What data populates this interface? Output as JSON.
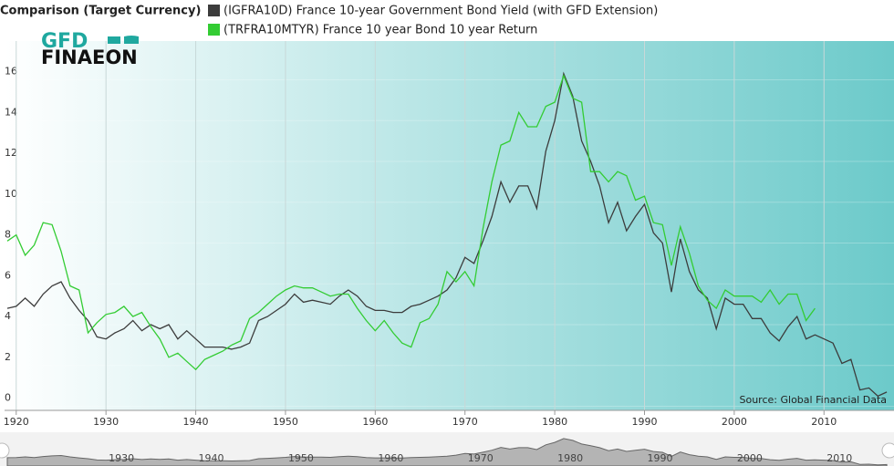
{
  "chart_data": {
    "type": "line",
    "title": "Comparison (Target Currency)",
    "logo": [
      "GFD",
      "FINAEON"
    ],
    "annotation": "Source: Global Financial Data",
    "x": [
      1919,
      1920,
      1921,
      1922,
      1923,
      1924,
      1925,
      1926,
      1927,
      1928,
      1929,
      1930,
      1931,
      1932,
      1933,
      1934,
      1935,
      1936,
      1937,
      1938,
      1939,
      1940,
      1941,
      1942,
      1943,
      1944,
      1945,
      1946,
      1947,
      1948,
      1949,
      1950,
      1951,
      1952,
      1953,
      1954,
      1955,
      1956,
      1957,
      1958,
      1959,
      1960,
      1961,
      1962,
      1963,
      1964,
      1965,
      1966,
      1967,
      1968,
      1969,
      1970,
      1971,
      1972,
      1973,
      1974,
      1975,
      1976,
      1977,
      1978,
      1979,
      1980,
      1981,
      1982,
      1983,
      1984,
      1985,
      1986,
      1987,
      1988,
      1989,
      1990,
      1991,
      1992,
      1993,
      1994,
      1995,
      1996,
      1997,
      1998,
      1999,
      2000,
      2001,
      2002,
      2003,
      2004,
      2005,
      2006,
      2007,
      2008,
      2009,
      2010,
      2011,
      2012,
      2013,
      2014,
      2015,
      2016,
      2017
    ],
    "series": [
      {
        "name": "(IGFRA10D) France 10-year Government Bond Yield (with GFD Extension)",
        "color": "#3c3c3c",
        "values": [
          4.8,
          4.9,
          5.3,
          4.9,
          5.5,
          5.9,
          6.1,
          5.3,
          4.7,
          4.2,
          3.4,
          3.3,
          3.6,
          3.8,
          4.2,
          3.7,
          4.0,
          3.8,
          4.0,
          3.3,
          3.7,
          3.3,
          2.9,
          2.9,
          2.9,
          2.8,
          2.9,
          3.1,
          4.2,
          4.4,
          4.7,
          5.0,
          5.5,
          5.1,
          5.2,
          5.1,
          5.0,
          5.4,
          5.7,
          5.4,
          4.9,
          4.7,
          4.7,
          4.6,
          4.6,
          4.9,
          5.0,
          5.2,
          5.4,
          5.7,
          6.3,
          7.3,
          7.0,
          8.1,
          9.3,
          11.0,
          10.0,
          10.8,
          10.8,
          9.7,
          12.5,
          14.0,
          16.3,
          15.2,
          13.0,
          12.0,
          10.8,
          9.0,
          10.0,
          8.6,
          9.3,
          9.9,
          8.5,
          8.0,
          5.6,
          8.2,
          6.6,
          5.7,
          5.3,
          3.8,
          5.3,
          5.0,
          5.0,
          4.3,
          4.3,
          3.6,
          3.2,
          3.9,
          4.4,
          3.3,
          3.5,
          3.3,
          3.1,
          2.1,
          2.3,
          0.8,
          0.9,
          0.5,
          0.7
        ]
      },
      {
        "name": "(TRFRA10MTYR) France 10 year Bond 10 year Return",
        "color": "#33cc33",
        "values": [
          8.1,
          8.4,
          7.4,
          7.9,
          9.0,
          8.9,
          7.6,
          5.9,
          5.7,
          3.6,
          4.1,
          4.5,
          4.6,
          4.9,
          4.4,
          4.6,
          3.9,
          3.3,
          2.4,
          2.6,
          2.2,
          1.8,
          2.3,
          2.5,
          2.7,
          3.0,
          3.2,
          4.3,
          4.6,
          5.0,
          5.4,
          5.7,
          5.9,
          5.8,
          5.8,
          5.6,
          5.4,
          5.5,
          5.5,
          4.8,
          4.2,
          3.7,
          4.2,
          3.6,
          3.1,
          2.9,
          4.1,
          4.3,
          5.0,
          6.6,
          6.1,
          6.6,
          5.9,
          8.7,
          11.0,
          12.8,
          13.0,
          14.4,
          13.7,
          13.7,
          14.7,
          14.9,
          16.2,
          15.1,
          14.9,
          11.5,
          11.5,
          11.0,
          11.5,
          11.3,
          10.1,
          10.3,
          9.0,
          8.9,
          6.9,
          8.8,
          7.5,
          5.9,
          5.2,
          4.8,
          5.7,
          5.4,
          5.4,
          5.4,
          5.1,
          5.7,
          5.0,
          5.5,
          5.5,
          4.2,
          4.8,
          null,
          null,
          null,
          null,
          null,
          null,
          null,
          null
        ]
      }
    ],
    "xlim": [
      1918.7,
      2017.8
    ],
    "xticks": [
      1920,
      1930,
      1940,
      1950,
      1960,
      1970,
      1980,
      1990,
      2000,
      2010
    ],
    "ylim": [
      -0.2,
      17.9
    ],
    "yticks": [
      0,
      2,
      4,
      6,
      8,
      10,
      12,
      14,
      16
    ],
    "grid": true
  }
}
